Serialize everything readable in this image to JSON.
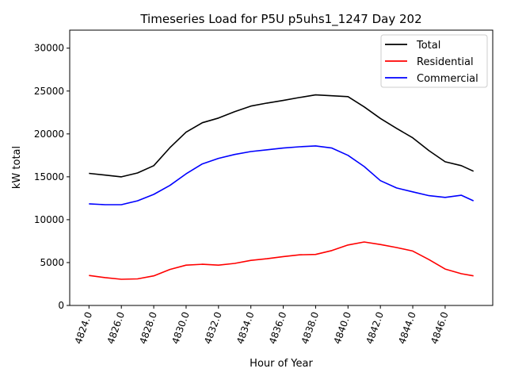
{
  "chart_data": {
    "type": "line",
    "title": "Timeseries Load for P5U p5uhs1_1247  Day 202",
    "xlabel": "Hour of Year",
    "ylabel": "kW total",
    "xlim": [
      4822.81,
      4848.94
    ],
    "ylim": [
      0,
      32100
    ],
    "grid": false,
    "legend_position": "top-right",
    "xticks": [
      4824,
      4826,
      4828,
      4830,
      4832,
      4834,
      4836,
      4838,
      4840,
      4842,
      4844,
      4846
    ],
    "xtick_labels": [
      "4824.0",
      "4826.0",
      "4828.0",
      "4830.0",
      "4832.0",
      "4834.0",
      "4836.0",
      "4838.0",
      "4840.0",
      "4842.0",
      "4844.0",
      "4846.0"
    ],
    "yticks": [
      0,
      5000,
      10000,
      15000,
      20000,
      25000,
      30000
    ],
    "ytick_labels": [
      "0",
      "5000",
      "10000",
      "15000",
      "20000",
      "25000",
      "30000"
    ],
    "x": [
      4824,
      4825,
      4826,
      4827,
      4828,
      4829,
      4830,
      4831,
      4832,
      4833,
      4834,
      4835,
      4836,
      4837,
      4838,
      4839,
      4840,
      4841,
      4842,
      4843,
      4844,
      4845,
      4846,
      4847,
      4847.75
    ],
    "series": [
      {
        "name": "Total",
        "color": "#000000",
        "values": [
          15400,
          15200,
          15000,
          15450,
          16300,
          18400,
          20200,
          21300,
          21850,
          22600,
          23250,
          23600,
          23900,
          24250,
          24550,
          24450,
          24350,
          23150,
          21800,
          20650,
          19550,
          18050,
          16750,
          16300,
          15650
        ]
      },
      {
        "name": "Residential",
        "color": "#ff0000",
        "values": [
          3500,
          3250,
          3050,
          3100,
          3450,
          4200,
          4700,
          4800,
          4700,
          4900,
          5250,
          5450,
          5700,
          5900,
          5950,
          6400,
          7050,
          7400,
          7100,
          6750,
          6350,
          5350,
          4250,
          3700,
          3450
        ]
      },
      {
        "name": "Commercial",
        "color": "#0000ff",
        "values": [
          11850,
          11750,
          11750,
          12200,
          12950,
          14000,
          15350,
          16500,
          17150,
          17600,
          17950,
          18150,
          18350,
          18500,
          18600,
          18350,
          17500,
          16200,
          14550,
          13700,
          13250,
          12800,
          12600,
          12850,
          12200
        ]
      }
    ]
  }
}
